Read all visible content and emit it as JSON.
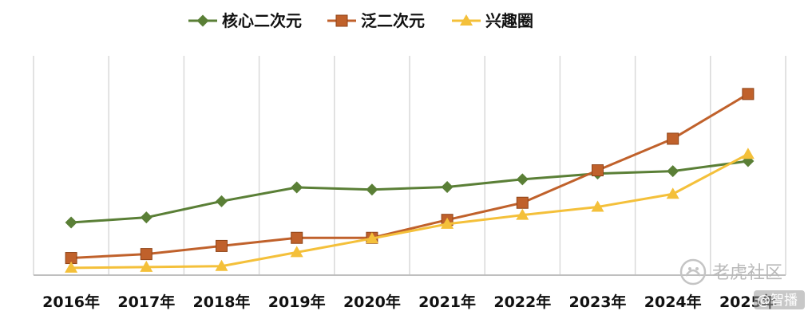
{
  "chart_data": {
    "type": "line",
    "title": "",
    "xlabel": "",
    "ylabel": "",
    "categories": [
      "2016年",
      "2017年",
      "2018年",
      "2019年",
      "2020年",
      "2021年",
      "2022年",
      "2023年",
      "2024年",
      "2025年"
    ],
    "ylim": [
      0,
      100
    ],
    "grid": {
      "vertical": true,
      "horizontal": false
    },
    "y_axis_labels_shown": false,
    "legend": "top-center",
    "series": [
      {
        "name": "核心二次元",
        "color": "#5a7f36",
        "marker": "diamond",
        "values": [
          24,
          26.3,
          33.7,
          40,
          39,
          40.2,
          43.7,
          46.3,
          47.4,
          52
        ]
      },
      {
        "name": "泛二次元",
        "color": "#c0612b",
        "marker": "square",
        "values": [
          7.8,
          9.6,
          13.3,
          17,
          17,
          25.2,
          33,
          47.8,
          62.2,
          82.6
        ]
      },
      {
        "name": "兴趣圈",
        "color": "#f4c03a",
        "marker": "triangle",
        "values": [
          3.3,
          3.7,
          4.1,
          10.4,
          16.7,
          23.3,
          27.4,
          31.1,
          37,
          55.2
        ]
      }
    ]
  },
  "watermark": {
    "logo_text": "老虎社区",
    "small_text": "@智播"
  }
}
